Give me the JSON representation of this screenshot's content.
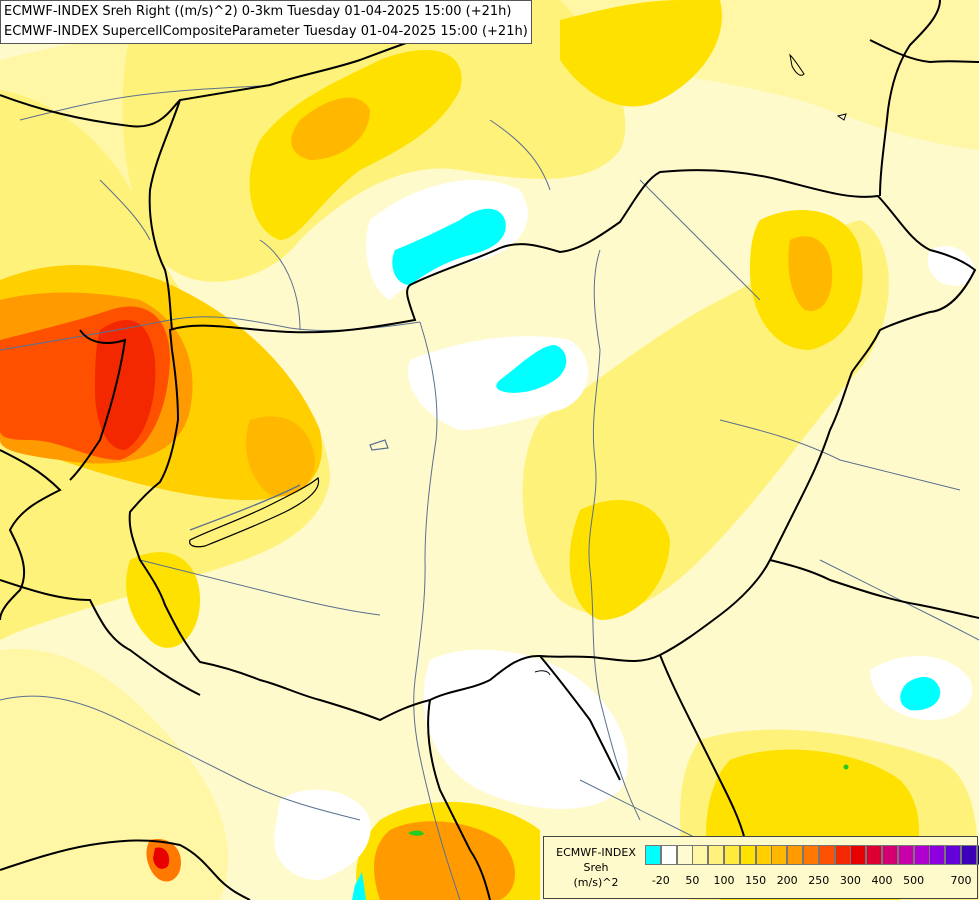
{
  "header": {
    "line1": "ECMWF-INDEX Sreh Right ((m/s)^2) 0-3km Tuesday 01-04-2025 15:00 (+21h)",
    "line2": "ECMWF-INDEX SupercellCompositeParameter Tuesday 01-04-2025 15:00 (+21h)"
  },
  "legend": {
    "title_line1": "ECMWF-INDEX",
    "title_line2": "Sreh",
    "title_line3": "(m/s)^2",
    "colors": [
      "#00ffff",
      "#ffffff",
      "#fffbd0",
      "#fff7a6",
      "#fff27a",
      "#ffeb3c",
      "#ffe100",
      "#ffcf00",
      "#ffb700",
      "#ff9a00",
      "#ff7800",
      "#ff5000",
      "#f42800",
      "#e80000",
      "#dc0030",
      "#d20070",
      "#c800a8",
      "#b000d0",
      "#8c00e0",
      "#6400d8",
      "#3c00b8",
      "#140090"
    ],
    "ticks": [
      "-20",
      "50",
      "100",
      "150",
      "200",
      "250",
      "300",
      "400",
      "500",
      "700"
    ]
  },
  "colors": {
    "background": "#fffacb",
    "border": "#000000",
    "river": "#5a7090"
  }
}
